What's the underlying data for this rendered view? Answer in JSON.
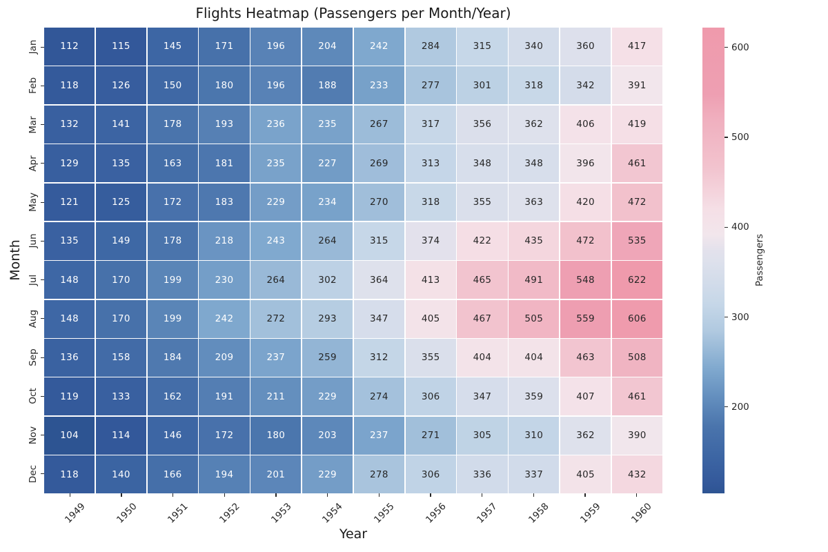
{
  "chart_data": {
    "type": "heatmap",
    "title": "Flights Heatmap (Passengers per Month/Year)",
    "xlabel": "Year",
    "ylabel": "Month",
    "colorbar_label": "Passengers",
    "columns": [
      "1949",
      "1950",
      "1951",
      "1952",
      "1953",
      "1954",
      "1955",
      "1956",
      "1957",
      "1958",
      "1959",
      "1960"
    ],
    "rows": [
      "Jan",
      "Feb",
      "Mar",
      "Apr",
      "May",
      "Jun",
      "Jul",
      "Aug",
      "Sep",
      "Oct",
      "Nov",
      "Dec"
    ],
    "values": [
      [
        112,
        115,
        145,
        171,
        196,
        204,
        242,
        284,
        315,
        340,
        360,
        417
      ],
      [
        118,
        126,
        150,
        180,
        196,
        188,
        233,
        277,
        301,
        318,
        342,
        391
      ],
      [
        132,
        141,
        178,
        193,
        236,
        235,
        267,
        317,
        356,
        362,
        406,
        419
      ],
      [
        129,
        135,
        163,
        181,
        235,
        227,
        269,
        313,
        348,
        348,
        396,
        461
      ],
      [
        121,
        125,
        172,
        183,
        229,
        234,
        270,
        318,
        355,
        363,
        420,
        472
      ],
      [
        135,
        149,
        178,
        218,
        243,
        264,
        315,
        374,
        422,
        435,
        472,
        535
      ],
      [
        148,
        170,
        199,
        230,
        264,
        302,
        364,
        413,
        465,
        491,
        548,
        622
      ],
      [
        148,
        170,
        199,
        242,
        272,
        293,
        347,
        405,
        467,
        505,
        559,
        606
      ],
      [
        136,
        158,
        184,
        209,
        237,
        259,
        312,
        355,
        404,
        404,
        463,
        508
      ],
      [
        119,
        133,
        162,
        191,
        211,
        229,
        274,
        306,
        347,
        359,
        407,
        461
      ],
      [
        104,
        114,
        146,
        172,
        180,
        203,
        237,
        271,
        305,
        310,
        362,
        390
      ],
      [
        118,
        140,
        166,
        194,
        201,
        229,
        278,
        306,
        336,
        337,
        405,
        432
      ]
    ],
    "vmin": 104,
    "vmax": 622,
    "colorbar_ticks": [
      200,
      300,
      400,
      500,
      600
    ],
    "colorbar_position": "right",
    "grid": "off",
    "colormap_stops": [
      [
        0.0,
        "#2d5492"
      ],
      [
        0.02,
        "#33589a"
      ],
      [
        0.08,
        "#3d66a4"
      ],
      [
        0.143,
        "#4a74ac"
      ],
      [
        0.21,
        "#6590bf"
      ],
      [
        0.266,
        "#7fa8ce"
      ],
      [
        0.3475,
        "#b0c9e0"
      ],
      [
        0.407,
        "#c6d7e8"
      ],
      [
        0.456,
        "#d3dcea"
      ],
      [
        0.5,
        "#dee1ec"
      ],
      [
        0.52,
        "#e2e1ec"
      ],
      [
        0.555,
        "#f2e6ec"
      ],
      [
        0.61,
        "#f5dfe6"
      ],
      [
        0.7,
        "#f2c3ce"
      ],
      [
        0.8,
        "#f0b0bf"
      ],
      [
        0.857,
        "#ee9fb2"
      ],
      [
        1.0,
        "#ef9aac"
      ]
    ],
    "annotation_text_colors": {
      "on_dark": "#ffffff",
      "on_light": "#262626"
    },
    "cell_gap_color": "#ffffff",
    "luminance_threshold": 0.408
  }
}
